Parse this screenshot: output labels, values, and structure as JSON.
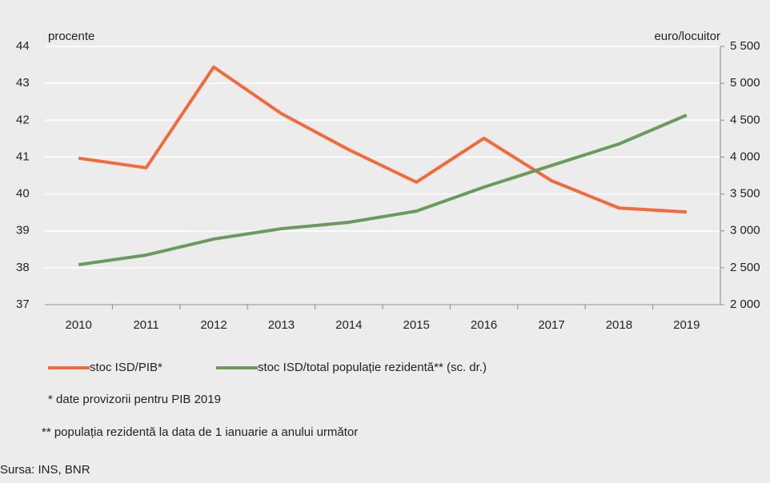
{
  "chart_data": {
    "type": "line",
    "y_label": "procente",
    "y2_label": "euro/locuitor",
    "categories": [
      "2010",
      "2011",
      "2012",
      "2013",
      "2014",
      "2015",
      "2016",
      "2017",
      "2018",
      "2019"
    ],
    "series": [
      {
        "name": "stoc ISD/PIB*",
        "color": "#f26a3a",
        "values": [
          40.97,
          40.71,
          43.44,
          42.18,
          41.2,
          40.32,
          41.51,
          40.36,
          39.62,
          39.51
        ]
      },
      {
        "name": "stoc ISD/total populație rezidentă** (sc. dr.)",
        "color": "#6a9a5c",
        "axis": "y2",
        "values": [
          2542,
          2672,
          2889,
          3029,
          3116,
          3268,
          3593,
          3886,
          4178,
          4568
        ]
      }
    ],
    "ylim": [
      37,
      44
    ],
    "yticks": [
      37,
      38,
      39,
      40,
      41,
      42,
      43,
      44
    ],
    "y2lim": [
      2000,
      5500
    ],
    "y2ticks": [
      {
        "value": 2000,
        "label": "2 000"
      },
      {
        "value": 2500,
        "label": "2 500"
      },
      {
        "value": 3000,
        "label": "3 000"
      },
      {
        "value": 3500,
        "label": "3 500"
      },
      {
        "value": 4000,
        "label": "4 000"
      },
      {
        "value": 4500,
        "label": "4 500"
      },
      {
        "value": 5000,
        "label": "5 000"
      },
      {
        "value": 5500,
        "label": "5 500"
      }
    ],
    "grid": true,
    "notes": [
      "* date provizorii pentru PIB 2019",
      "** populația rezidentă la data de 1 ianuarie a anului următor"
    ],
    "source": "Sursa: INS, BNR"
  }
}
